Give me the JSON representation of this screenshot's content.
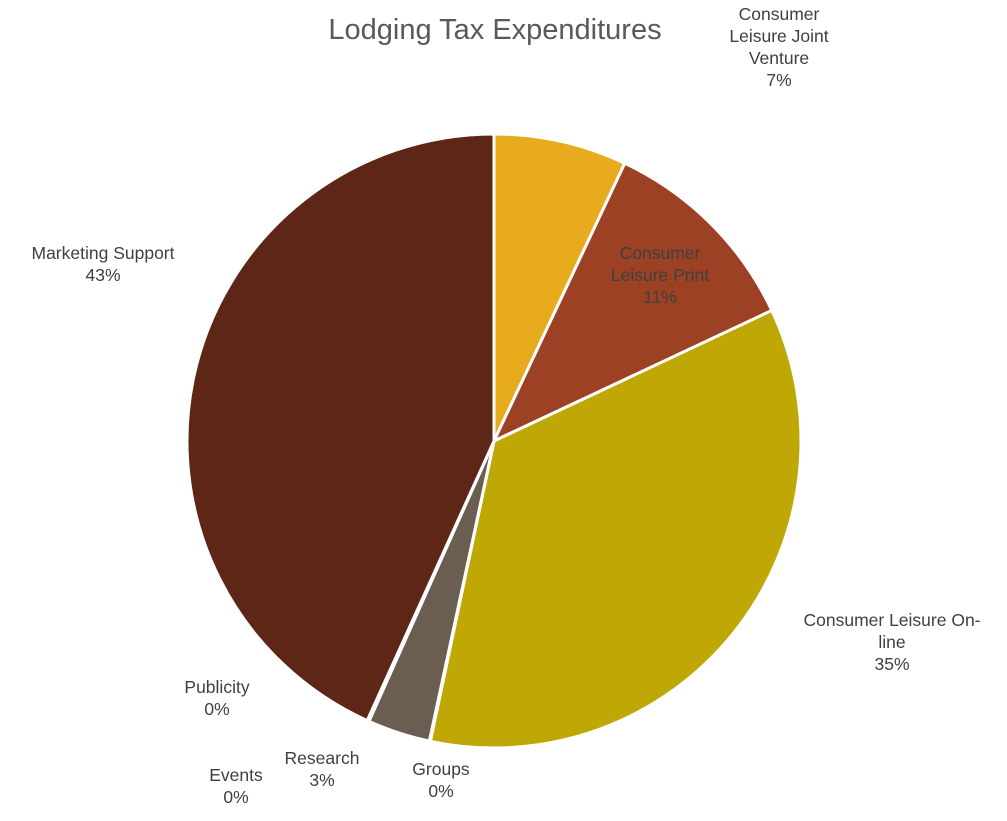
{
  "chart_data": {
    "type": "pie",
    "title": "Lodging Tax Expenditures",
    "start_angle_deg": 0,
    "direction": "clockwise",
    "slices": [
      {
        "label_lines": [
          "Consumer",
          "Leisure Joint",
          "Venture"
        ],
        "pct_label": "7%",
        "value": 7,
        "color": "#E8AB1E",
        "label_color": "#404040"
      },
      {
        "label_lines": [
          "Consumer",
          "Leisure Print"
        ],
        "pct_label": "11%",
        "value": 11,
        "color": "#9C4124",
        "label_color": "#404040"
      },
      {
        "label_lines": [
          "Consumer Leisure On-",
          "line"
        ],
        "pct_label": "35%",
        "value": 35.3,
        "color": "#BFA805",
        "label_color": "#404040"
      },
      {
        "label_lines": [
          "Groups"
        ],
        "pct_label": "0%",
        "value": 0.05,
        "color": "#D9D9D9",
        "label_color": "#404040"
      },
      {
        "label_lines": [
          "Research"
        ],
        "pct_label": "3%",
        "value": 3.3,
        "color": "#6A5E51",
        "label_color": "#404040"
      },
      {
        "label_lines": [
          "Events"
        ],
        "pct_label": "0%",
        "value": 0.05,
        "color": "#D9D9D9",
        "label_color": "#404040"
      },
      {
        "label_lines": [
          "Publicity"
        ],
        "pct_label": "0%",
        "value": 0.05,
        "color": "#D9D9D9",
        "label_color": "#404040"
      },
      {
        "label_lines": [
          "Marketing Support"
        ],
        "pct_label": "43%",
        "value": 43.2,
        "color": "#5E2617",
        "label_color": "#404040"
      }
    ]
  }
}
